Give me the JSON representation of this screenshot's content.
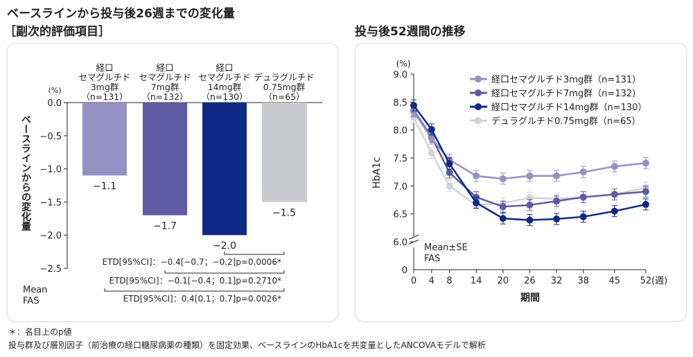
{
  "titles": {
    "left_line1": "ベースラインから投与後26週までの変化量",
    "left_line2": "［副次的評価項目］",
    "right": "投与後52週間の推移"
  },
  "notes": [
    "＊：名目上のp値",
    "投与群及び層別因子（前治療の経口糖尿病薬の種類）を固定効果、ベースラインのHbA1cを共変量としたANCOVAモデルで解析"
  ],
  "chart_data": [
    {
      "type": "bar",
      "yunit": "(%)",
      "ylabel": "ベースラインからの変化量",
      "ylim": [
        -2.5,
        0
      ],
      "yticks": [
        "0.0",
        "−0.5",
        "−1.0",
        "−1.5",
        "−2.0",
        "−2.5"
      ],
      "categories": [
        [
          "経口",
          "セマグルチド",
          "3mg群",
          "（n=131）"
        ],
        [
          "経口",
          "セマグルチド",
          "7mg群",
          "（n=132）"
        ],
        [
          "経口",
          "セマグルチド",
          "14mg群",
          "（n=130）"
        ],
        [
          "デュラグルチド",
          "0.75mg群",
          "（n=65）"
        ]
      ],
      "values": [
        -1.1,
        -1.7,
        -2.0,
        -1.5
      ],
      "value_labels": [
        "−1.1",
        "−1.7",
        "−2.0",
        "−1.5"
      ],
      "colors": [
        "#9591c4",
        "#5f5aa2",
        "#0f2a86",
        "#c9cacd"
      ],
      "footer": [
        "Mean",
        "FAS"
      ],
      "comparisons": [
        {
          "text": "ETD[95%CI]：−0.4[−0.7；−0.2]p=0.0006*",
          "from": 2,
          "to": 3
        },
        {
          "text": "ETD[95%CI]：−0.1[−0.4；0.1]p=0.2710*",
          "from": 1,
          "to": 3
        },
        {
          "text": "ETD[95%CI]：0.4[0.1；0.7]p=0.0026*",
          "from": 0,
          "to": 3
        }
      ]
    },
    {
      "type": "line",
      "yunit": "(%)",
      "ylabel": "HbA1c",
      "xlabel": "期間",
      "xunit": "(週)",
      "ylim": [
        6.0,
        9.0
      ],
      "yticks": [
        "6.0",
        "6.5",
        "7.0",
        "7.5",
        "8.0",
        "8.5",
        "9.0"
      ],
      "ybreak_label": "0",
      "x": [
        0,
        4,
        8,
        14,
        20,
        26,
        32,
        38,
        45,
        52
      ],
      "series": [
        {
          "name": "経口セマグルチド3mg群（n=131）",
          "color": "#9591c4",
          "values": [
            8.33,
            7.85,
            7.47,
            7.18,
            7.13,
            7.18,
            7.18,
            7.25,
            7.35,
            7.41
          ]
        },
        {
          "name": "経口セマグルチド7mg群（n=132）",
          "color": "#5f5aa2",
          "values": [
            8.35,
            7.88,
            7.24,
            6.8,
            6.63,
            6.66,
            6.73,
            6.8,
            6.85,
            6.9
          ]
        },
        {
          "name": "経口セマグルチド14mg群（n=130）",
          "color": "#0f2a86",
          "values": [
            8.44,
            8.01,
            7.4,
            6.7,
            6.42,
            6.39,
            6.41,
            6.45,
            6.55,
            6.67
          ]
        },
        {
          "name": "デュラグルチド0.75mg群（n=65）",
          "color": "#d2d3d5",
          "values": [
            8.23,
            7.59,
            7.0,
            6.66,
            6.69,
            6.79,
            6.77,
            6.8,
            6.85,
            6.97
          ]
        }
      ],
      "footer": [
        "Mean±SE",
        "FAS"
      ],
      "legend": "top-right"
    }
  ]
}
